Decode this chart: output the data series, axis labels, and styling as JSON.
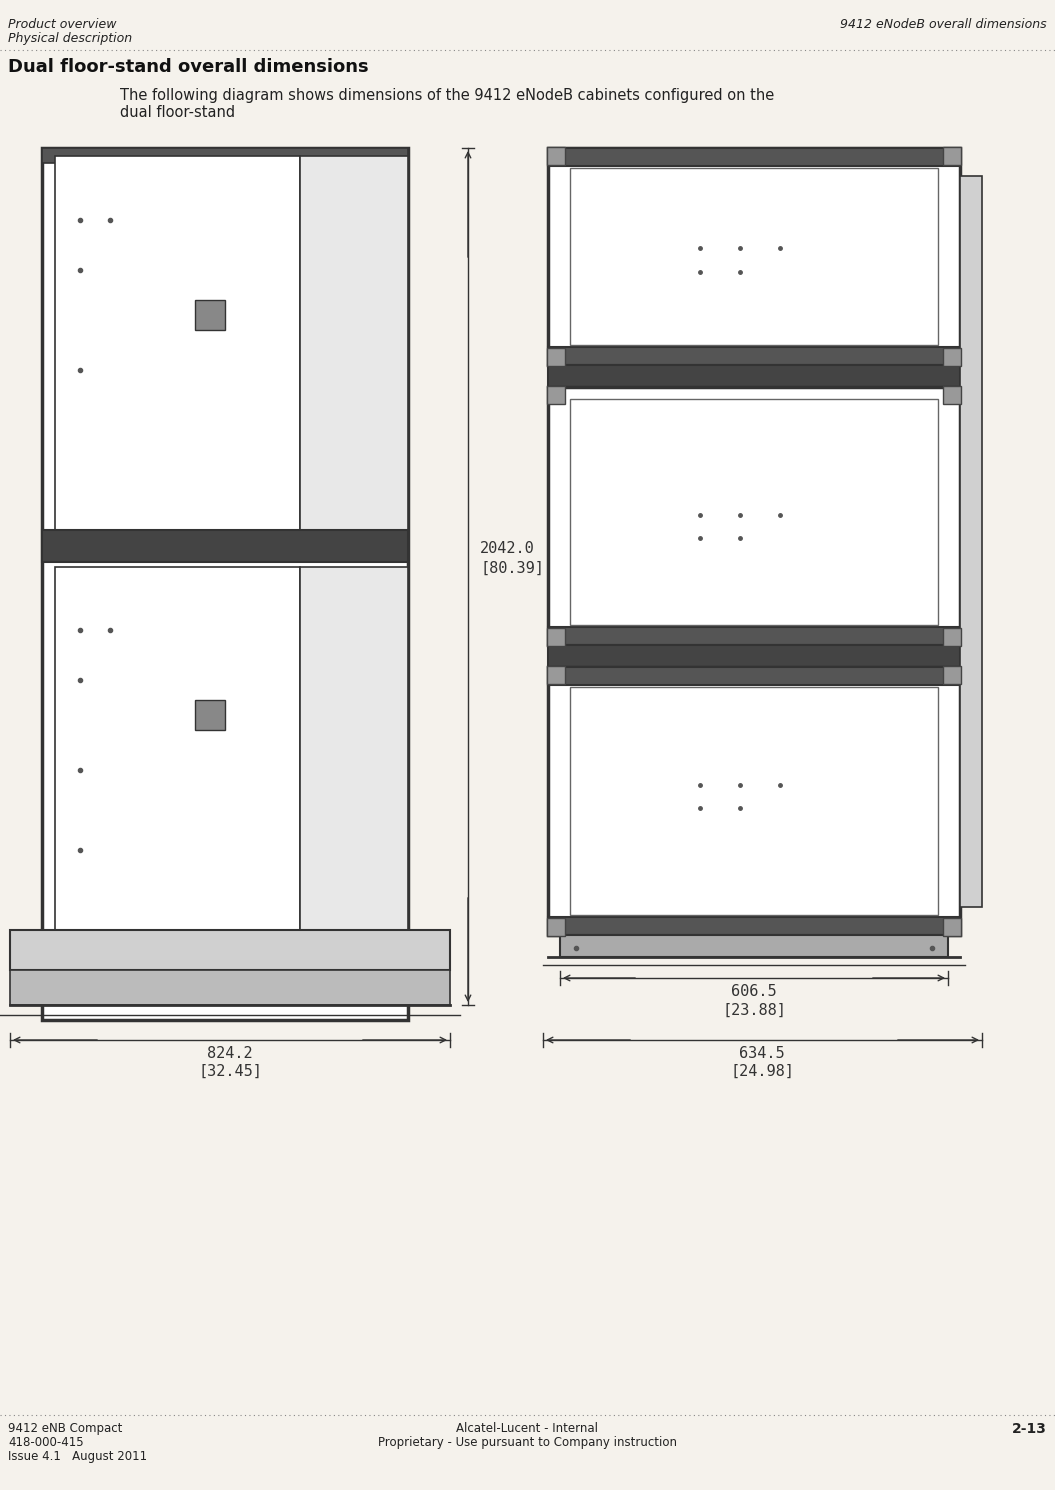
{
  "bg_color": "#f5f2ec",
  "header_left_line1": "Product overview",
  "header_left_line2": "Physical description",
  "header_right": "9412 eNodeB overall dimensions",
  "section_title": "Dual floor-stand overall dimensions",
  "body_text_line1": "The following diagram shows dimensions of the 9412 eNodeB cabinets configured on the",
  "body_text_line2": "dual floor-stand",
  "footer_left_line1": "9412 eNB Compact",
  "footer_left_line2": "418-000-415",
  "footer_left_line3": "Issue 4.1   August 2011",
  "footer_center_line1": "Alcatel-Lucent - Internal",
  "footer_center_line2": "Proprietary - Use pursuant to Company instruction",
  "footer_right": "2-13",
  "dim_label_left_val": "2042.0",
  "dim_label_left_bracket": "[80.39]",
  "dim_label_bottom_left_val": "824.2",
  "dim_label_bottom_left_bracket": "[32.45]",
  "dim_label_bottom_right1_val": "606.5",
  "dim_label_bottom_right1_bracket": "[23.88]",
  "dim_label_bottom_right2_val": "634.5",
  "dim_label_bottom_right2_bracket": "[24.98]"
}
